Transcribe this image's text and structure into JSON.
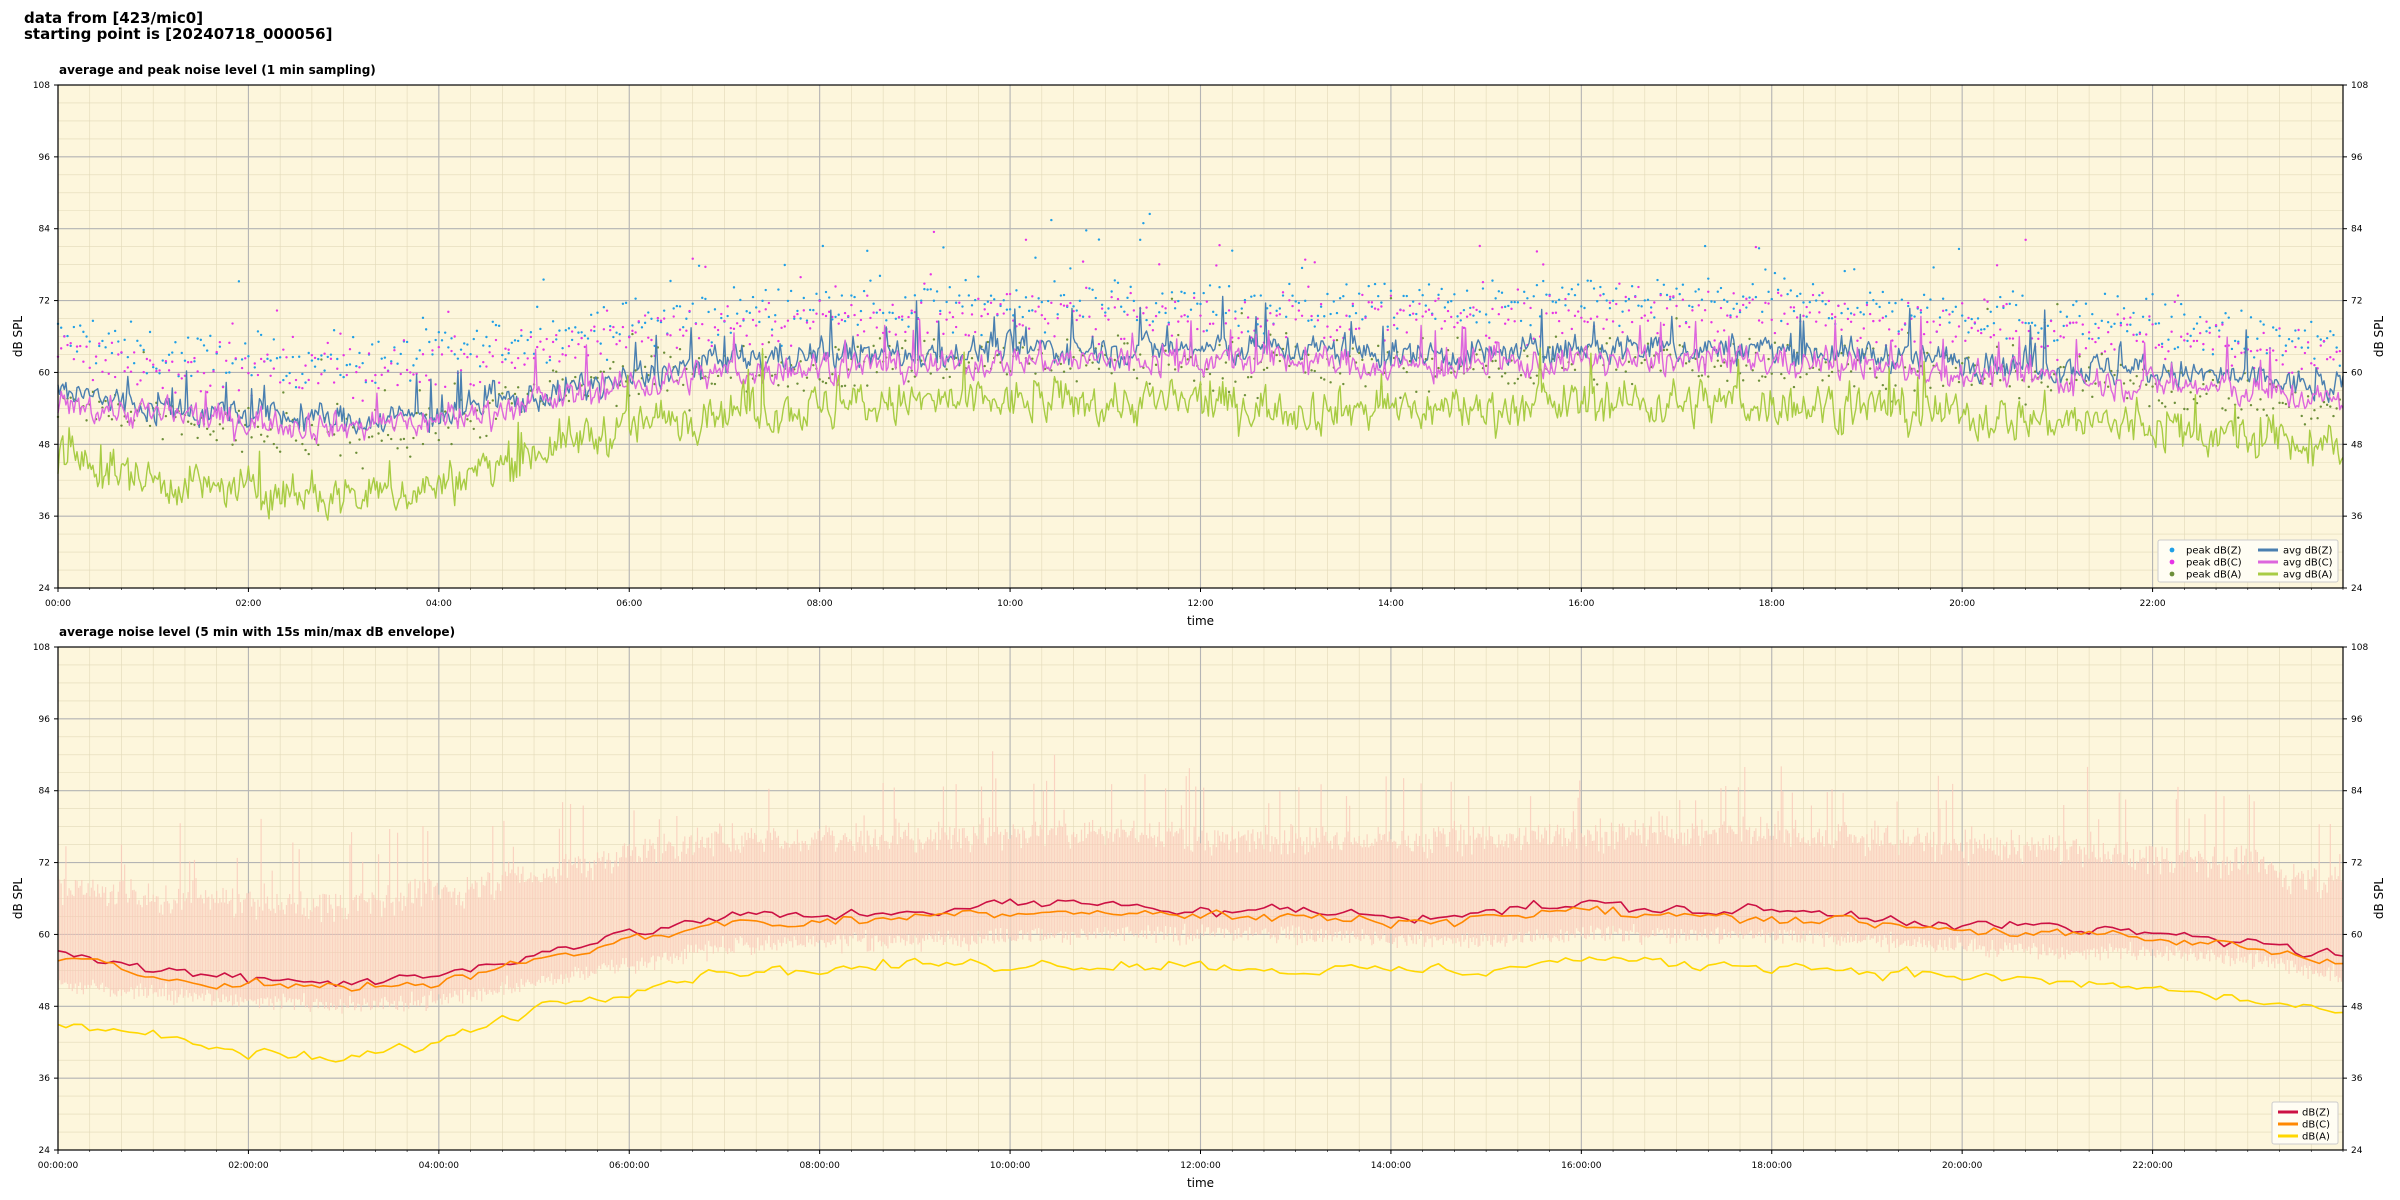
{
  "header": {
    "line1": "data from [423/mic0]",
    "line2": "starting point is [20240718_000056]"
  },
  "colors": {
    "background": "#fdf6dc",
    "peak_z": "#1f9fe6",
    "peak_c": "#e633e6",
    "peak_a": "#6d8f3a",
    "avg_z": "#4a7fb0",
    "avg_c": "#dd66dd",
    "avg_a": "#a8cc44",
    "db_z": "#cc1144",
    "db_c": "#ff8800",
    "db_a": "#ffd700",
    "envelope": "#f9c8b8"
  },
  "chart_data": [
    {
      "type": "line",
      "title": "average and peak noise level (1 min sampling)",
      "xlabel": "time",
      "ylabel": "dB SPL",
      "ylim": [
        24,
        108
      ],
      "yticks": [
        24,
        36,
        48,
        60,
        72,
        84,
        96,
        108
      ],
      "xlim": [
        0,
        24
      ],
      "x_units": "hours since 00:00",
      "xticks": [
        0,
        2,
        4,
        6,
        8,
        10,
        12,
        14,
        16,
        18,
        20,
        22
      ],
      "xtick_labels": [
        "00:00",
        "02:00",
        "04:00",
        "06:00",
        "08:00",
        "10:00",
        "12:00",
        "14:00",
        "16:00",
        "18:00",
        "20:00",
        "22:00"
      ],
      "grid": true,
      "legend_position": "bottom-right",
      "sampling": "1 min",
      "profile_hours": [
        0,
        1,
        2,
        3,
        4,
        5,
        6,
        7,
        8,
        9,
        10,
        11,
        12,
        13,
        14,
        15,
        16,
        17,
        18,
        19,
        20,
        21,
        22,
        23,
        24
      ],
      "series": [
        {
          "name": "peak dB(Z)",
          "kind": "scatter",
          "color": "#1f9fe6",
          "values": [
            66,
            63,
            62,
            62,
            63,
            66,
            68,
            70,
            71,
            71,
            72,
            72,
            71,
            71,
            71,
            71,
            72,
            72,
            72,
            71,
            70,
            69,
            68,
            66,
            64
          ]
        },
        {
          "name": "peak dB(C)",
          "kind": "scatter",
          "color": "#e633e6",
          "values": [
            64,
            61,
            60,
            60,
            61,
            64,
            66,
            68,
            69,
            69,
            70,
            70,
            69,
            69,
            69,
            69,
            70,
            70,
            70,
            69,
            68,
            67,
            66,
            64,
            62
          ]
        },
        {
          "name": "peak dB(A)",
          "kind": "scatter",
          "color": "#6d8f3a",
          "values": [
            55,
            52,
            50,
            49,
            51,
            56,
            59,
            61,
            61,
            62,
            62,
            62,
            61,
            61,
            61,
            61,
            62,
            62,
            62,
            61,
            60,
            59,
            58,
            56,
            54
          ]
        },
        {
          "name": "avg dB(Z)",
          "kind": "line",
          "color": "#4a7fb0",
          "values": [
            57,
            54,
            53,
            52,
            53,
            56,
            59,
            62,
            63,
            63,
            64,
            64,
            64,
            64,
            63,
            63,
            64,
            64,
            64,
            63,
            62,
            61,
            60,
            59,
            57
          ]
        },
        {
          "name": "avg dB(C)",
          "kind": "line",
          "color": "#dd66dd",
          "values": [
            55,
            53,
            52,
            51,
            52,
            55,
            58,
            60,
            61,
            61,
            62,
            62,
            62,
            62,
            61,
            61,
            62,
            62,
            62,
            61,
            60,
            59,
            58,
            57,
            55
          ]
        },
        {
          "name": "avg dB(A)",
          "kind": "line",
          "color": "#a8cc44",
          "values": [
            46,
            42,
            40,
            39,
            41,
            47,
            51,
            54,
            54,
            55,
            55,
            55,
            55,
            54,
            54,
            54,
            55,
            55,
            55,
            54,
            53,
            52,
            51,
            49,
            47
          ]
        }
      ]
    },
    {
      "type": "area",
      "title": "average noise level (5 min with 15s min/max dB envelope)",
      "xlabel": "time",
      "ylabel": "dB SPL",
      "ylim": [
        24,
        108
      ],
      "yticks": [
        24,
        36,
        48,
        60,
        72,
        84,
        96,
        108
      ],
      "xlim": [
        0,
        24
      ],
      "x_units": "hours since 00:00",
      "xticks": [
        0,
        2,
        4,
        6,
        8,
        10,
        12,
        14,
        16,
        18,
        20,
        22
      ],
      "xtick_labels": [
        "00:00:00",
        "02:00:00",
        "04:00:00",
        "06:00:00",
        "08:00:00",
        "10:00:00",
        "12:00:00",
        "14:00:00",
        "16:00:00",
        "18:00:00",
        "20:00:00",
        "22:00:00"
      ],
      "grid": true,
      "legend_position": "bottom-right",
      "sampling": "5 min",
      "profile_hours": [
        0,
        1,
        2,
        3,
        4,
        5,
        6,
        7,
        8,
        9,
        10,
        11,
        12,
        13,
        14,
        15,
        16,
        17,
        18,
        19,
        20,
        21,
        22,
        23,
        24
      ],
      "envelope_min": [
        52,
        50,
        49,
        48,
        49,
        52,
        55,
        58,
        59,
        59,
        60,
        60,
        60,
        60,
        59,
        59,
        60,
        60,
        60,
        59,
        58,
        57,
        57,
        56,
        53
      ],
      "envelope_max": [
        68,
        66,
        65,
        65,
        67,
        70,
        73,
        76,
        76,
        76,
        77,
        77,
        76,
        76,
        76,
        76,
        77,
        77,
        77,
        76,
        75,
        74,
        73,
        72,
        68
      ],
      "series": [
        {
          "name": "dB(Z)",
          "color": "#cc1144",
          "values": [
            57,
            54,
            53,
            52,
            53,
            57,
            60,
            63,
            63,
            64,
            65,
            65,
            64,
            64,
            63,
            64,
            65,
            64,
            64,
            63,
            62,
            61,
            60,
            59,
            56
          ]
        },
        {
          "name": "dB(C)",
          "color": "#ff8800",
          "values": [
            56,
            53,
            52,
            51,
            52,
            56,
            59,
            62,
            62,
            63,
            64,
            64,
            63,
            63,
            62,
            63,
            64,
            63,
            63,
            62,
            61,
            60,
            59,
            58,
            55
          ]
        },
        {
          "name": "dB(A)",
          "color": "#ffd700",
          "values": [
            46,
            43,
            40,
            39,
            42,
            48,
            51,
            54,
            54,
            55,
            55,
            55,
            55,
            54,
            54,
            54,
            56,
            55,
            55,
            54,
            53,
            52,
            51,
            49,
            47
          ]
        }
      ]
    }
  ]
}
